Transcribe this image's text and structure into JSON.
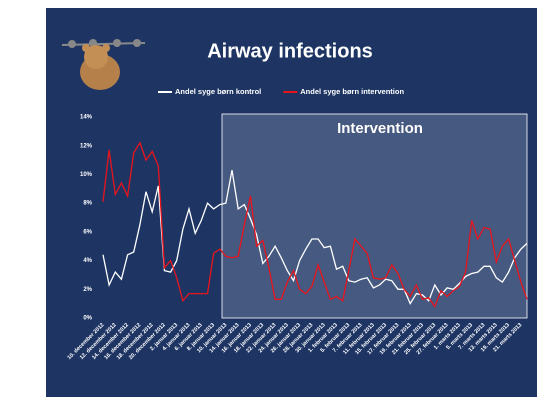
{
  "chart_data": {
    "type": "line",
    "title": "Airway infections",
    "annotation": "Intervention",
    "categories": [
      "10. december 2012",
      null,
      "12. december 2012",
      null,
      "14. december 2012",
      null,
      "16. december 2012",
      null,
      "18. december 2012",
      null,
      "20. december 2012",
      null,
      "2. januar 2013",
      null,
      "4. januar 2013",
      null,
      "6. januar 2013",
      null,
      "8. januar 2013",
      null,
      "10. januar 2013",
      null,
      "14. januar 2013",
      null,
      "16. januar 2013",
      null,
      "18. januar 2013",
      null,
      "22. januar 2013",
      null,
      "24. januar 2013",
      null,
      "26. januar 2013",
      null,
      "28. januar 2013",
      null,
      "30. januar 2013",
      null,
      "1. februar 2013",
      null,
      "5. februar 2013",
      null,
      "7. februar 2013",
      null,
      "11. februar 2013",
      null,
      "15. februar 2013",
      null,
      "17. februar 2013",
      null,
      "19. februar 2013",
      null,
      "21. februar 2013",
      null,
      "25. februar 2013",
      null,
      "27. februar 2013",
      null,
      "1. marts 2013",
      null,
      "5. marts 2013",
      null,
      "7. marts 2013",
      null,
      "13. marts 2013",
      null,
      "19. marts 2013",
      null,
      "21. marts 2013",
      null
    ],
    "series": [
      {
        "name": "Andel syge børn kontrol",
        "color": "#ffffff",
        "values": [
          4.4,
          2.3,
          3.2,
          2.7,
          4.4,
          4.6,
          6.5,
          8.8,
          7.4,
          9.2,
          3.3,
          3.2,
          4.0,
          6.2,
          7.6,
          5.9,
          6.8,
          8.0,
          7.6,
          7.9,
          8.0,
          10.3,
          7.6,
          7.9,
          6.9,
          5.8,
          3.8,
          4.3,
          5.0,
          4.2,
          3.3,
          2.6,
          4.0,
          4.8,
          5.5,
          5.5,
          4.9,
          5.0,
          3.4,
          3.6,
          2.6,
          2.5,
          2.7,
          2.8,
          2.1,
          2.3,
          2.7,
          2.6,
          2.0,
          2.0,
          1.0,
          1.7,
          1.6,
          1.2,
          2.3,
          1.6,
          2.1,
          2.0,
          2.4,
          2.9,
          3.1,
          3.2,
          3.6,
          3.6,
          2.8,
          2.5,
          3.2,
          4.2,
          4.8,
          5.2
        ]
      },
      {
        "name": "Andel syge børn intervention",
        "color": "#e8141c",
        "values": [
          8.1,
          11.7,
          8.6,
          9.4,
          8.5,
          11.5,
          12.2,
          11.0,
          11.6,
          10.6,
          3.5,
          4.0,
          2.8,
          1.2,
          1.7,
          1.7,
          1.7,
          1.7,
          4.5,
          4.8,
          4.3,
          4.2,
          4.3,
          6.5,
          8.5,
          5.0,
          5.4,
          3.5,
          1.3,
          1.3,
          2.5,
          3.3,
          2.0,
          1.7,
          2.2,
          3.7,
          2.5,
          1.3,
          1.5,
          1.2,
          3.3,
          5.5,
          5.0,
          4.5,
          2.8,
          2.7,
          2.8,
          3.7,
          3.1,
          2.0,
          1.5,
          2.3,
          1.3,
          1.4,
          0.8,
          1.9,
          1.5,
          1.9,
          2.2,
          3.2,
          6.8,
          5.5,
          6.3,
          6.2,
          3.9,
          5.0,
          5.5,
          4.0,
          2.5,
          1.3
        ]
      }
    ],
    "ylim": [
      0,
      14
    ],
    "yticks": [
      {
        "value": 0,
        "label": "0%"
      },
      {
        "value": 2,
        "label": "2%"
      },
      {
        "value": 4,
        "label": "4%"
      },
      {
        "value": 6,
        "label": "6%"
      },
      {
        "value": 8,
        "label": "8%"
      },
      {
        "value": 10,
        "label": "10%"
      },
      {
        "value": 12,
        "label": "12%"
      },
      {
        "value": 14,
        "label": "14%"
      }
    ],
    "grid": false,
    "legend": "top"
  }
}
